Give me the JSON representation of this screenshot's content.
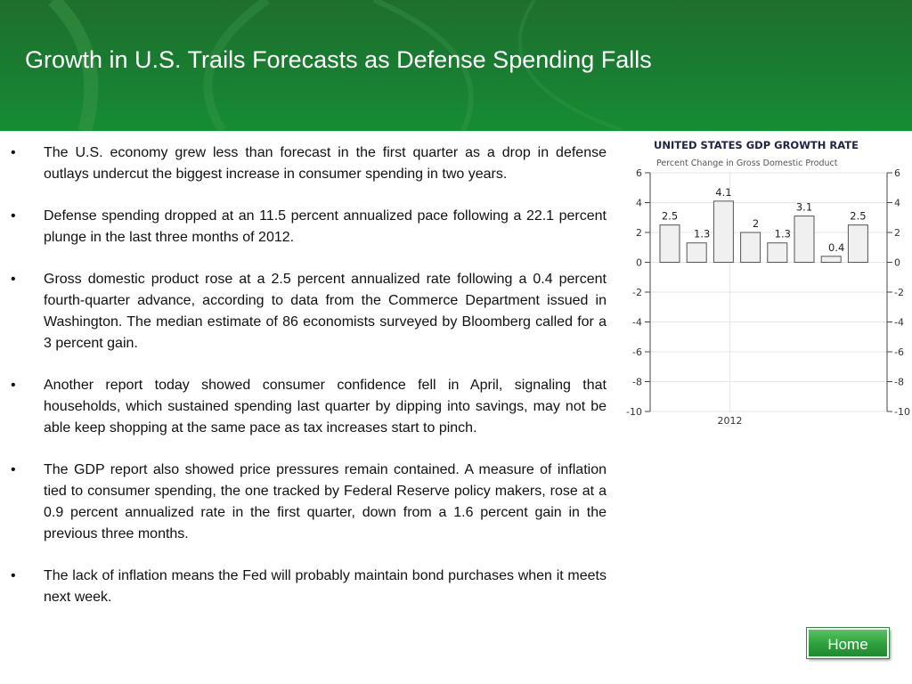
{
  "slide": {
    "title": "Growth in U.S. Trails Forecasts as Defense Spending Falls",
    "bullets": [
      "The U.S. economy grew less than forecast in the first quarter as a drop in defense outlays undercut the biggest increase in consumer spending in two years.",
      "Defense spending dropped at an 11.5 percent annualized pace following a 22.1 percent plunge in the last three months of 2012.",
      "Gross domestic product rose at a 2.5 percent annualized rate following a 0.4 percent fourth-quarter advance, according to data from the Commerce Department issued in Washington. The median estimate of 86 economists surveyed by Bloomberg called for a 3 percent gain.",
      "Another report today showed consumer confidence fell in April, signaling that households, which sustained spending last quarter by dipping into savings, may not be able keep shopping at the same pace as tax increases start to pinch.",
      "The GDP report also showed price pressures remain contained. A measure of inflation tied to consumer spending, the one tracked by Federal Reserve policy makers, rose at a 0.9 percent annualized rate in the first quarter, down from a 1.6 percent gain in the previous three months.",
      "The lack of inflation means the Fed will probably maintain bond purchases when it meets next week."
    ],
    "bullet_symbol": "•",
    "home_label": "Home"
  },
  "colors": {
    "header_green": "#1a7a30",
    "button_green": "#2f9f3d",
    "bar_fill": "#f0f0f0",
    "chart_title": "#222244"
  },
  "chart_data": {
    "type": "bar",
    "title": "UNITED STATES GDP GROWTH RATE",
    "subtitle": "Percent Change in Gross Domestic Product",
    "values": [
      2.5,
      1.3,
      4.1,
      2,
      1.3,
      3.1,
      0.4,
      2.5
    ],
    "value_labels": [
      "2.5",
      "1.3",
      "4.1",
      "2",
      "1.3",
      "3.1",
      "0.4",
      "2.5"
    ],
    "x_tick_labels": [
      "2012"
    ],
    "y_ticks": [
      "6",
      "4",
      "2",
      "0",
      "-2",
      "-4",
      "-6",
      "-8",
      "-10"
    ],
    "ylim": [
      -10,
      6
    ],
    "grid": true,
    "axes": "left and right"
  }
}
